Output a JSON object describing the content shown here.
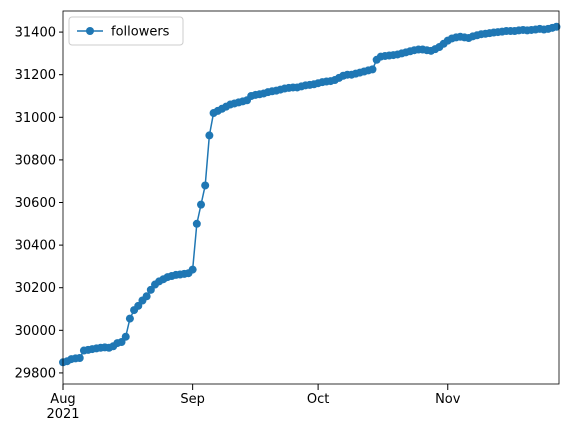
{
  "chart_data": {
    "type": "line",
    "x": [
      0,
      1,
      2,
      3,
      4,
      5,
      6,
      7,
      8,
      9,
      10,
      11,
      12,
      13,
      14,
      15,
      16,
      17,
      18,
      19,
      20,
      21,
      22,
      23,
      24,
      25,
      26,
      27,
      28,
      29,
      30,
      31,
      32,
      33,
      34,
      35,
      36,
      37,
      38,
      39,
      40,
      41,
      42,
      43,
      44,
      45,
      46,
      47,
      48,
      49,
      50,
      51,
      52,
      53,
      54,
      55,
      56,
      57,
      58,
      59,
      60,
      61,
      62,
      63,
      64,
      65,
      66,
      67,
      68,
      69,
      70,
      71,
      72,
      73,
      74,
      75,
      76,
      77,
      78,
      79,
      80,
      81,
      82,
      83,
      84,
      85,
      86,
      87,
      88,
      89,
      90,
      91,
      92,
      93,
      94,
      95,
      96,
      97,
      98,
      99,
      100,
      101,
      102,
      103,
      104,
      105,
      106,
      107,
      108,
      109,
      110,
      111,
      112,
      113,
      114,
      115,
      116,
      117,
      118
    ],
    "series": [
      {
        "name": "followers",
        "color": "#1f77b4",
        "values": [
          29850,
          29855,
          29865,
          29868,
          29870,
          29905,
          29908,
          29912,
          29915,
          29918,
          29920,
          29918,
          29925,
          29940,
          29945,
          29970,
          30055,
          30095,
          30115,
          30140,
          30160,
          30190,
          30215,
          30230,
          30240,
          30250,
          30255,
          30260,
          30262,
          30265,
          30268,
          30285,
          30500,
          30590,
          30680,
          30915,
          31020,
          31030,
          31040,
          31050,
          31060,
          31065,
          31070,
          31075,
          31080,
          31100,
          31105,
          31108,
          31112,
          31118,
          31122,
          31125,
          31130,
          31135,
          31138,
          31140,
          31140,
          31145,
          31150,
          31152,
          31155,
          31160,
          31165,
          31168,
          31170,
          31175,
          31185,
          31195,
          31200,
          31200,
          31205,
          31210,
          31215,
          31220,
          31225,
          31270,
          31285,
          31288,
          31290,
          31292,
          31295,
          31300,
          31305,
          31310,
          31315,
          31318,
          31318,
          31315,
          31312,
          31320,
          31330,
          31345,
          31360,
          31370,
          31375,
          31378,
          31375,
          31372,
          31380,
          31385,
          31390,
          31392,
          31395,
          31398,
          31400,
          31402,
          31405,
          31405,
          31405,
          31408,
          31410,
          31408,
          31410,
          31412,
          31415,
          31412,
          31415,
          31420,
          31425
        ]
      }
    ],
    "xlim": [
      0,
      118.6
    ],
    "xticks": [
      {
        "value": 0,
        "label": "Aug\n2021"
      },
      {
        "value": 31,
        "label": "Sep"
      },
      {
        "value": 61,
        "label": "Oct"
      },
      {
        "value": 92,
        "label": "Nov"
      }
    ],
    "ylim": [
      29748,
      31499
    ],
    "yticks": [
      29800,
      30000,
      30200,
      30400,
      30600,
      30800,
      31000,
      31200,
      31400
    ],
    "legend": "upper left"
  }
}
